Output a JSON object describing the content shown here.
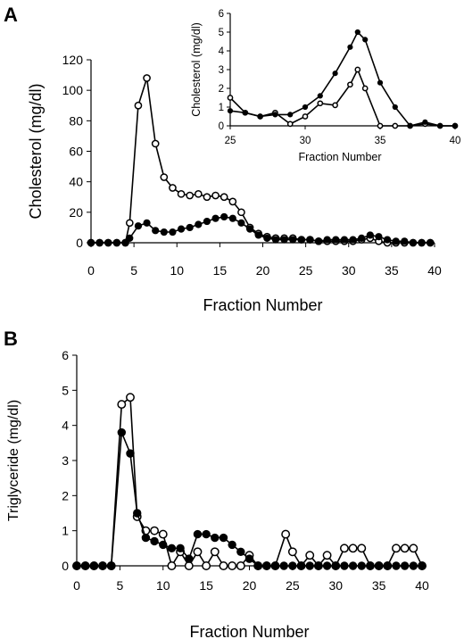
{
  "chart_data": [
    {
      "type": "line",
      "panel_label": "A",
      "xlabel": "Fraction Number",
      "ylabel": "Cholesterol (mg/dl)",
      "xlim": [
        0,
        40
      ],
      "ylim": [
        0,
        120
      ],
      "x_ticks": [
        0,
        5,
        10,
        15,
        20,
        25,
        30,
        35,
        40
      ],
      "y_ticks": [
        0,
        20,
        40,
        60,
        80,
        100,
        120
      ],
      "grid": false,
      "series": [
        {
          "marker": "open-circle",
          "points": [
            [
              0,
              0
            ],
            [
              1,
              0
            ],
            [
              2,
              0
            ],
            [
              3,
              0
            ],
            [
              4,
              0
            ],
            [
              4.5,
              13
            ],
            [
              5.5,
              90
            ],
            [
              6.5,
              108
            ],
            [
              7.5,
              65
            ],
            [
              8.5,
              43
            ],
            [
              9.5,
              36
            ],
            [
              10.5,
              32
            ],
            [
              11.5,
              31
            ],
            [
              12.5,
              32
            ],
            [
              13.5,
              30
            ],
            [
              14.5,
              31
            ],
            [
              15.5,
              30
            ],
            [
              16.5,
              27
            ],
            [
              17.5,
              20
            ],
            [
              18.5,
              10
            ],
            [
              19.5,
              6
            ],
            [
              20.5,
              4
            ],
            [
              21.5,
              3
            ],
            [
              22.5,
              3
            ],
            [
              23.5,
              3
            ],
            [
              24.5,
              2
            ],
            [
              25.5,
              2
            ],
            [
              26.5,
              1
            ],
            [
              27.5,
              1
            ],
            [
              28.5,
              1
            ],
            [
              29.5,
              1
            ],
            [
              30.5,
              1
            ],
            [
              31.5,
              2
            ],
            [
              32.5,
              3
            ],
            [
              33.5,
              1
            ],
            [
              34.5,
              0
            ],
            [
              35.5,
              0
            ],
            [
              36.5,
              0
            ],
            [
              37.5,
              0
            ],
            [
              38.5,
              0
            ],
            [
              39.5,
              0
            ]
          ]
        },
        {
          "marker": "filled-circle",
          "points": [
            [
              0,
              0
            ],
            [
              1,
              0
            ],
            [
              2,
              0
            ],
            [
              3,
              0
            ],
            [
              4,
              0
            ],
            [
              4.5,
              3
            ],
            [
              5.5,
              11
            ],
            [
              6.5,
              13
            ],
            [
              7.5,
              8
            ],
            [
              8.5,
              7
            ],
            [
              9.5,
              7
            ],
            [
              10.5,
              9
            ],
            [
              11.5,
              10
            ],
            [
              12.5,
              12
            ],
            [
              13.5,
              14
            ],
            [
              14.5,
              16
            ],
            [
              15.5,
              17
            ],
            [
              16.5,
              16
            ],
            [
              17.5,
              13
            ],
            [
              18.5,
              9
            ],
            [
              19.5,
              5
            ],
            [
              20.5,
              3
            ],
            [
              21.5,
              2
            ],
            [
              22.5,
              2
            ],
            [
              23.5,
              2
            ],
            [
              24.5,
              2
            ],
            [
              25.5,
              2
            ],
            [
              26.5,
              1
            ],
            [
              27.5,
              2
            ],
            [
              28.5,
              2
            ],
            [
              29.5,
              2
            ],
            [
              30.5,
              2
            ],
            [
              31.5,
              3
            ],
            [
              32.5,
              5
            ],
            [
              33.5,
              4
            ],
            [
              34.5,
              2
            ],
            [
              35.5,
              1
            ],
            [
              36.5,
              1
            ],
            [
              37.5,
              0
            ],
            [
              38.5,
              0
            ],
            [
              39.5,
              0
            ]
          ]
        }
      ],
      "inset": {
        "type": "line",
        "xlabel": "Fraction Number",
        "ylabel": "Cholesterol (mg/dl)",
        "xlim": [
          25,
          40
        ],
        "ylim": [
          0,
          6
        ],
        "x_ticks": [
          25,
          30,
          35,
          40
        ],
        "y_ticks": [
          0,
          1,
          2,
          3,
          4,
          5,
          6
        ],
        "series": [
          {
            "marker": "open-circle",
            "points": [
              [
                25,
                1.5
              ],
              [
                26,
                0.7
              ],
              [
                27,
                0.5
              ],
              [
                28,
                0.7
              ],
              [
                29,
                0.1
              ],
              [
                30,
                0.5
              ],
              [
                31,
                1.2
              ],
              [
                32,
                1.1
              ],
              [
                33,
                2.2
              ],
              [
                33.5,
                3
              ],
              [
                34,
                2
              ],
              [
                35,
                0
              ],
              [
                36,
                0
              ],
              [
                37,
                0
              ],
              [
                38,
                0.1
              ],
              [
                39,
                0
              ],
              [
                40,
                0
              ]
            ]
          },
          {
            "marker": "filled-circle",
            "points": [
              [
                25,
                0.8
              ],
              [
                26,
                0.7
              ],
              [
                27,
                0.5
              ],
              [
                28,
                0.6
              ],
              [
                29,
                0.6
              ],
              [
                30,
                1.0
              ],
              [
                31,
                1.6
              ],
              [
                32,
                2.8
              ],
              [
                33,
                4.2
              ],
              [
                33.5,
                5
              ],
              [
                34,
                4.6
              ],
              [
                35,
                2.3
              ],
              [
                36,
                1.0
              ],
              [
                37,
                0
              ],
              [
                38,
                0.2
              ],
              [
                39,
                0
              ],
              [
                40,
                0
              ]
            ]
          }
        ]
      }
    },
    {
      "type": "line",
      "panel_label": "B",
      "xlabel": "Fraction Number",
      "ylabel": "Triglyceride (mg/dl)",
      "xlim": [
        0,
        40
      ],
      "ylim": [
        0,
        6
      ],
      "x_ticks": [
        0,
        5,
        10,
        15,
        20,
        25,
        30,
        35,
        40
      ],
      "y_ticks": [
        0,
        1,
        2,
        3,
        4,
        5,
        6
      ],
      "grid": false,
      "series": [
        {
          "marker": "open-circle",
          "points": [
            [
              0,
              0
            ],
            [
              1,
              0
            ],
            [
              2,
              0
            ],
            [
              3,
              0
            ],
            [
              4,
              0
            ],
            [
              5.2,
              4.6
            ],
            [
              6.2,
              4.8
            ],
            [
              7,
              1.4
            ],
            [
              8,
              1.0
            ],
            [
              9,
              1.0
            ],
            [
              10,
              0.9
            ],
            [
              11,
              0
            ],
            [
              12,
              0.4
            ],
            [
              13,
              0
            ],
            [
              14,
              0.4
            ],
            [
              15,
              0
            ],
            [
              16,
              0.4
            ],
            [
              17,
              0
            ],
            [
              18,
              0
            ],
            [
              19,
              0
            ],
            [
              20,
              0.3
            ],
            [
              21,
              0
            ],
            [
              22,
              0
            ],
            [
              23,
              0
            ],
            [
              24.2,
              0.9
            ],
            [
              25,
              0.4
            ],
            [
              26,
              0
            ],
            [
              27,
              0.3
            ],
            [
              28,
              0
            ],
            [
              29,
              0.3
            ],
            [
              30,
              0
            ],
            [
              31,
              0.5
            ],
            [
              32,
              0.5
            ],
            [
              33,
              0.5
            ],
            [
              34,
              0
            ],
            [
              35,
              0
            ],
            [
              36,
              0
            ],
            [
              37,
              0.5
            ],
            [
              38,
              0.5
            ],
            [
              39,
              0.5
            ],
            [
              40,
              0
            ]
          ]
        },
        {
          "marker": "filled-circle",
          "points": [
            [
              0,
              0
            ],
            [
              1,
              0
            ],
            [
              2,
              0
            ],
            [
              3,
              0
            ],
            [
              4,
              0
            ],
            [
              5.2,
              3.8
            ],
            [
              6.2,
              3.2
            ],
            [
              7,
              1.5
            ],
            [
              8,
              0.8
            ],
            [
              9,
              0.7
            ],
            [
              10,
              0.6
            ],
            [
              11,
              0.5
            ],
            [
              12,
              0.5
            ],
            [
              13,
              0.2
            ],
            [
              14,
              0.9
            ],
            [
              15,
              0.9
            ],
            [
              16,
              0.8
            ],
            [
              17,
              0.8
            ],
            [
              18,
              0.6
            ],
            [
              19,
              0.4
            ],
            [
              20,
              0.2
            ],
            [
              21,
              0
            ],
            [
              22,
              0
            ],
            [
              23,
              0
            ],
            [
              24,
              0
            ],
            [
              25,
              0
            ],
            [
              26,
              0
            ],
            [
              27,
              0
            ],
            [
              28,
              0
            ],
            [
              29,
              0
            ],
            [
              30,
              0
            ],
            [
              31,
              0
            ],
            [
              32,
              0
            ],
            [
              33,
              0
            ],
            [
              34,
              0
            ],
            [
              35,
              0
            ],
            [
              36,
              0
            ],
            [
              37,
              0
            ],
            [
              38,
              0
            ],
            [
              39,
              0
            ],
            [
              40,
              0
            ]
          ]
        }
      ]
    }
  ]
}
